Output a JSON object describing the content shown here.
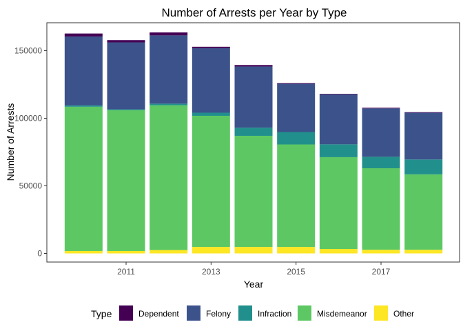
{
  "chart_data": {
    "type": "bar",
    "stacked": true,
    "title": "Number of Arrests per Year by Type",
    "xlabel": "Year",
    "ylabel": "Number of Arrests",
    "categories": [
      2010,
      2011,
      2012,
      2013,
      2014,
      2015,
      2016,
      2017,
      2018
    ],
    "x_ticks": [
      2011,
      2013,
      2015,
      2017
    ],
    "y_ticks": [
      0,
      50000,
      100000,
      150000
    ],
    "y_tick_labels": [
      "0",
      "50000",
      "100000",
      "150000"
    ],
    "ylim": [
      0,
      170000
    ],
    "legend_title": "Type",
    "legend_position": "bottom",
    "grid": false,
    "series": [
      {
        "name": "Other",
        "color": "#FDE725",
        "values": [
          1800,
          1800,
          2500,
          4800,
          4800,
          4800,
          3300,
          2700,
          2700
        ]
      },
      {
        "name": "Misdemeanor",
        "color": "#5DC863",
        "values": [
          106700,
          104200,
          107100,
          97000,
          82200,
          75800,
          67900,
          60300,
          55800
        ]
      },
      {
        "name": "Infraction",
        "color": "#21908C",
        "values": [
          1000,
          600,
          1200,
          2300,
          6000,
          9200,
          9500,
          8500,
          11000
        ]
      },
      {
        "name": "Felony",
        "color": "#3B528B",
        "values": [
          51000,
          49500,
          50500,
          47800,
          45300,
          35700,
          37000,
          35800,
          34600
        ]
      },
      {
        "name": "Dependent",
        "color": "#440154",
        "values": [
          2200,
          1700,
          2200,
          1000,
          1100,
          500,
          400,
          500,
          400
        ]
      }
    ],
    "legend_order": [
      "Dependent",
      "Felony",
      "Infraction",
      "Misdemeanor",
      "Other"
    ]
  }
}
